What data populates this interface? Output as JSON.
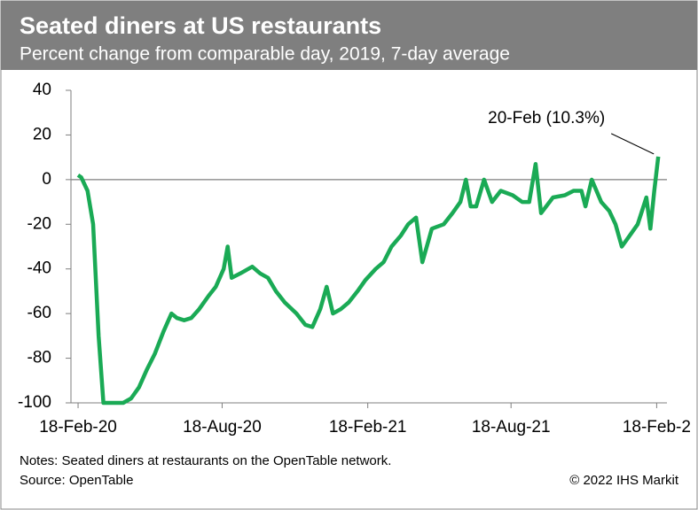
{
  "chart_data": {
    "type": "line",
    "title": "Seated diners at US restaurants",
    "subtitle": "Percent change from comparable day, 2019, 7-day average",
    "annotation": "20-Feb (10.3%)",
    "notes": "Notes: Seated diners at restaurants on the OpenTable network.",
    "source": "Source: OpenTable",
    "copyright": "© 2022 IHS Markit",
    "x": [
      "2020-02-18",
      "2020-02-22",
      "2020-03-01",
      "2020-03-08",
      "2020-03-15",
      "2020-03-21",
      "2020-04-01",
      "2020-04-15",
      "2020-04-25",
      "2020-05-05",
      "2020-05-15",
      "2020-05-25",
      "2020-06-05",
      "2020-06-15",
      "2020-06-22",
      "2020-07-01",
      "2020-07-10",
      "2020-07-20",
      "2020-08-01",
      "2020-08-10",
      "2020-08-20",
      "2020-08-25",
      "2020-08-30",
      "2020-09-10",
      "2020-09-25",
      "2020-10-05",
      "2020-10-15",
      "2020-10-25",
      "2020-11-05",
      "2020-11-20",
      "2020-12-01",
      "2020-12-10",
      "2020-12-20",
      "2020-12-28",
      "2021-01-05",
      "2021-01-15",
      "2021-01-25",
      "2021-02-05",
      "2021-02-15",
      "2021-02-28",
      "2021-03-10",
      "2021-03-20",
      "2021-04-01",
      "2021-04-10",
      "2021-04-20",
      "2021-04-28",
      "2021-05-10",
      "2021-05-25",
      "2021-06-05",
      "2021-06-15",
      "2021-06-22",
      "2021-06-28",
      "2021-07-05",
      "2021-07-15",
      "2021-07-25",
      "2021-08-05",
      "2021-08-20",
      "2021-09-01",
      "2021-09-10",
      "2021-09-18",
      "2021-09-25",
      "2021-10-10",
      "2021-10-25",
      "2021-11-05",
      "2021-11-15",
      "2021-11-20",
      "2021-11-28",
      "2021-12-10",
      "2021-12-20",
      "2021-12-28",
      "2022-01-05",
      "2022-01-15",
      "2022-01-25",
      "2022-02-05",
      "2022-02-10",
      "2022-02-15",
      "2022-02-20"
    ],
    "series": [
      {
        "name": "Seated diners",
        "color": "#1aaa55",
        "values": [
          2,
          1,
          -5,
          -20,
          -70,
          -100,
          -100,
          -100,
          -98,
          -93,
          -85,
          -78,
          -68,
          -60,
          -62,
          -63,
          -62,
          -58,
          -52,
          -48,
          -40,
          -30,
          -44,
          -42,
          -39,
          -42,
          -44,
          -50,
          -55,
          -60,
          -65,
          -66,
          -58,
          -48,
          -60,
          -58,
          -55,
          -50,
          -45,
          -40,
          -37,
          -30,
          -25,
          -20,
          -17,
          -37,
          -22,
          -20,
          -15,
          -10,
          0,
          -12,
          -12,
          0,
          -10,
          -5,
          -7,
          -10,
          -10,
          7,
          -15,
          -8,
          -7,
          -5,
          -5,
          -12,
          0,
          -10,
          -14,
          -20,
          -30,
          -25,
          -20,
          -8,
          -22,
          -5,
          10.3
        ]
      }
    ],
    "xlim": [
      "2020-02-09",
      "2022-03-03"
    ],
    "xticks": [
      {
        "value": "2020-02-18",
        "label": "18-Feb-20"
      },
      {
        "value": "2020-08-18",
        "label": "18-Aug-20"
      },
      {
        "value": "2021-02-18",
        "label": "18-Feb-21"
      },
      {
        "value": "2021-08-18",
        "label": "18-Aug-21"
      },
      {
        "value": "2022-02-18",
        "label": "18-Feb-2"
      }
    ],
    "ylim": [
      -100,
      40
    ],
    "yticks": [
      40,
      20,
      0,
      -20,
      -40,
      -60,
      -80,
      -100
    ]
  }
}
